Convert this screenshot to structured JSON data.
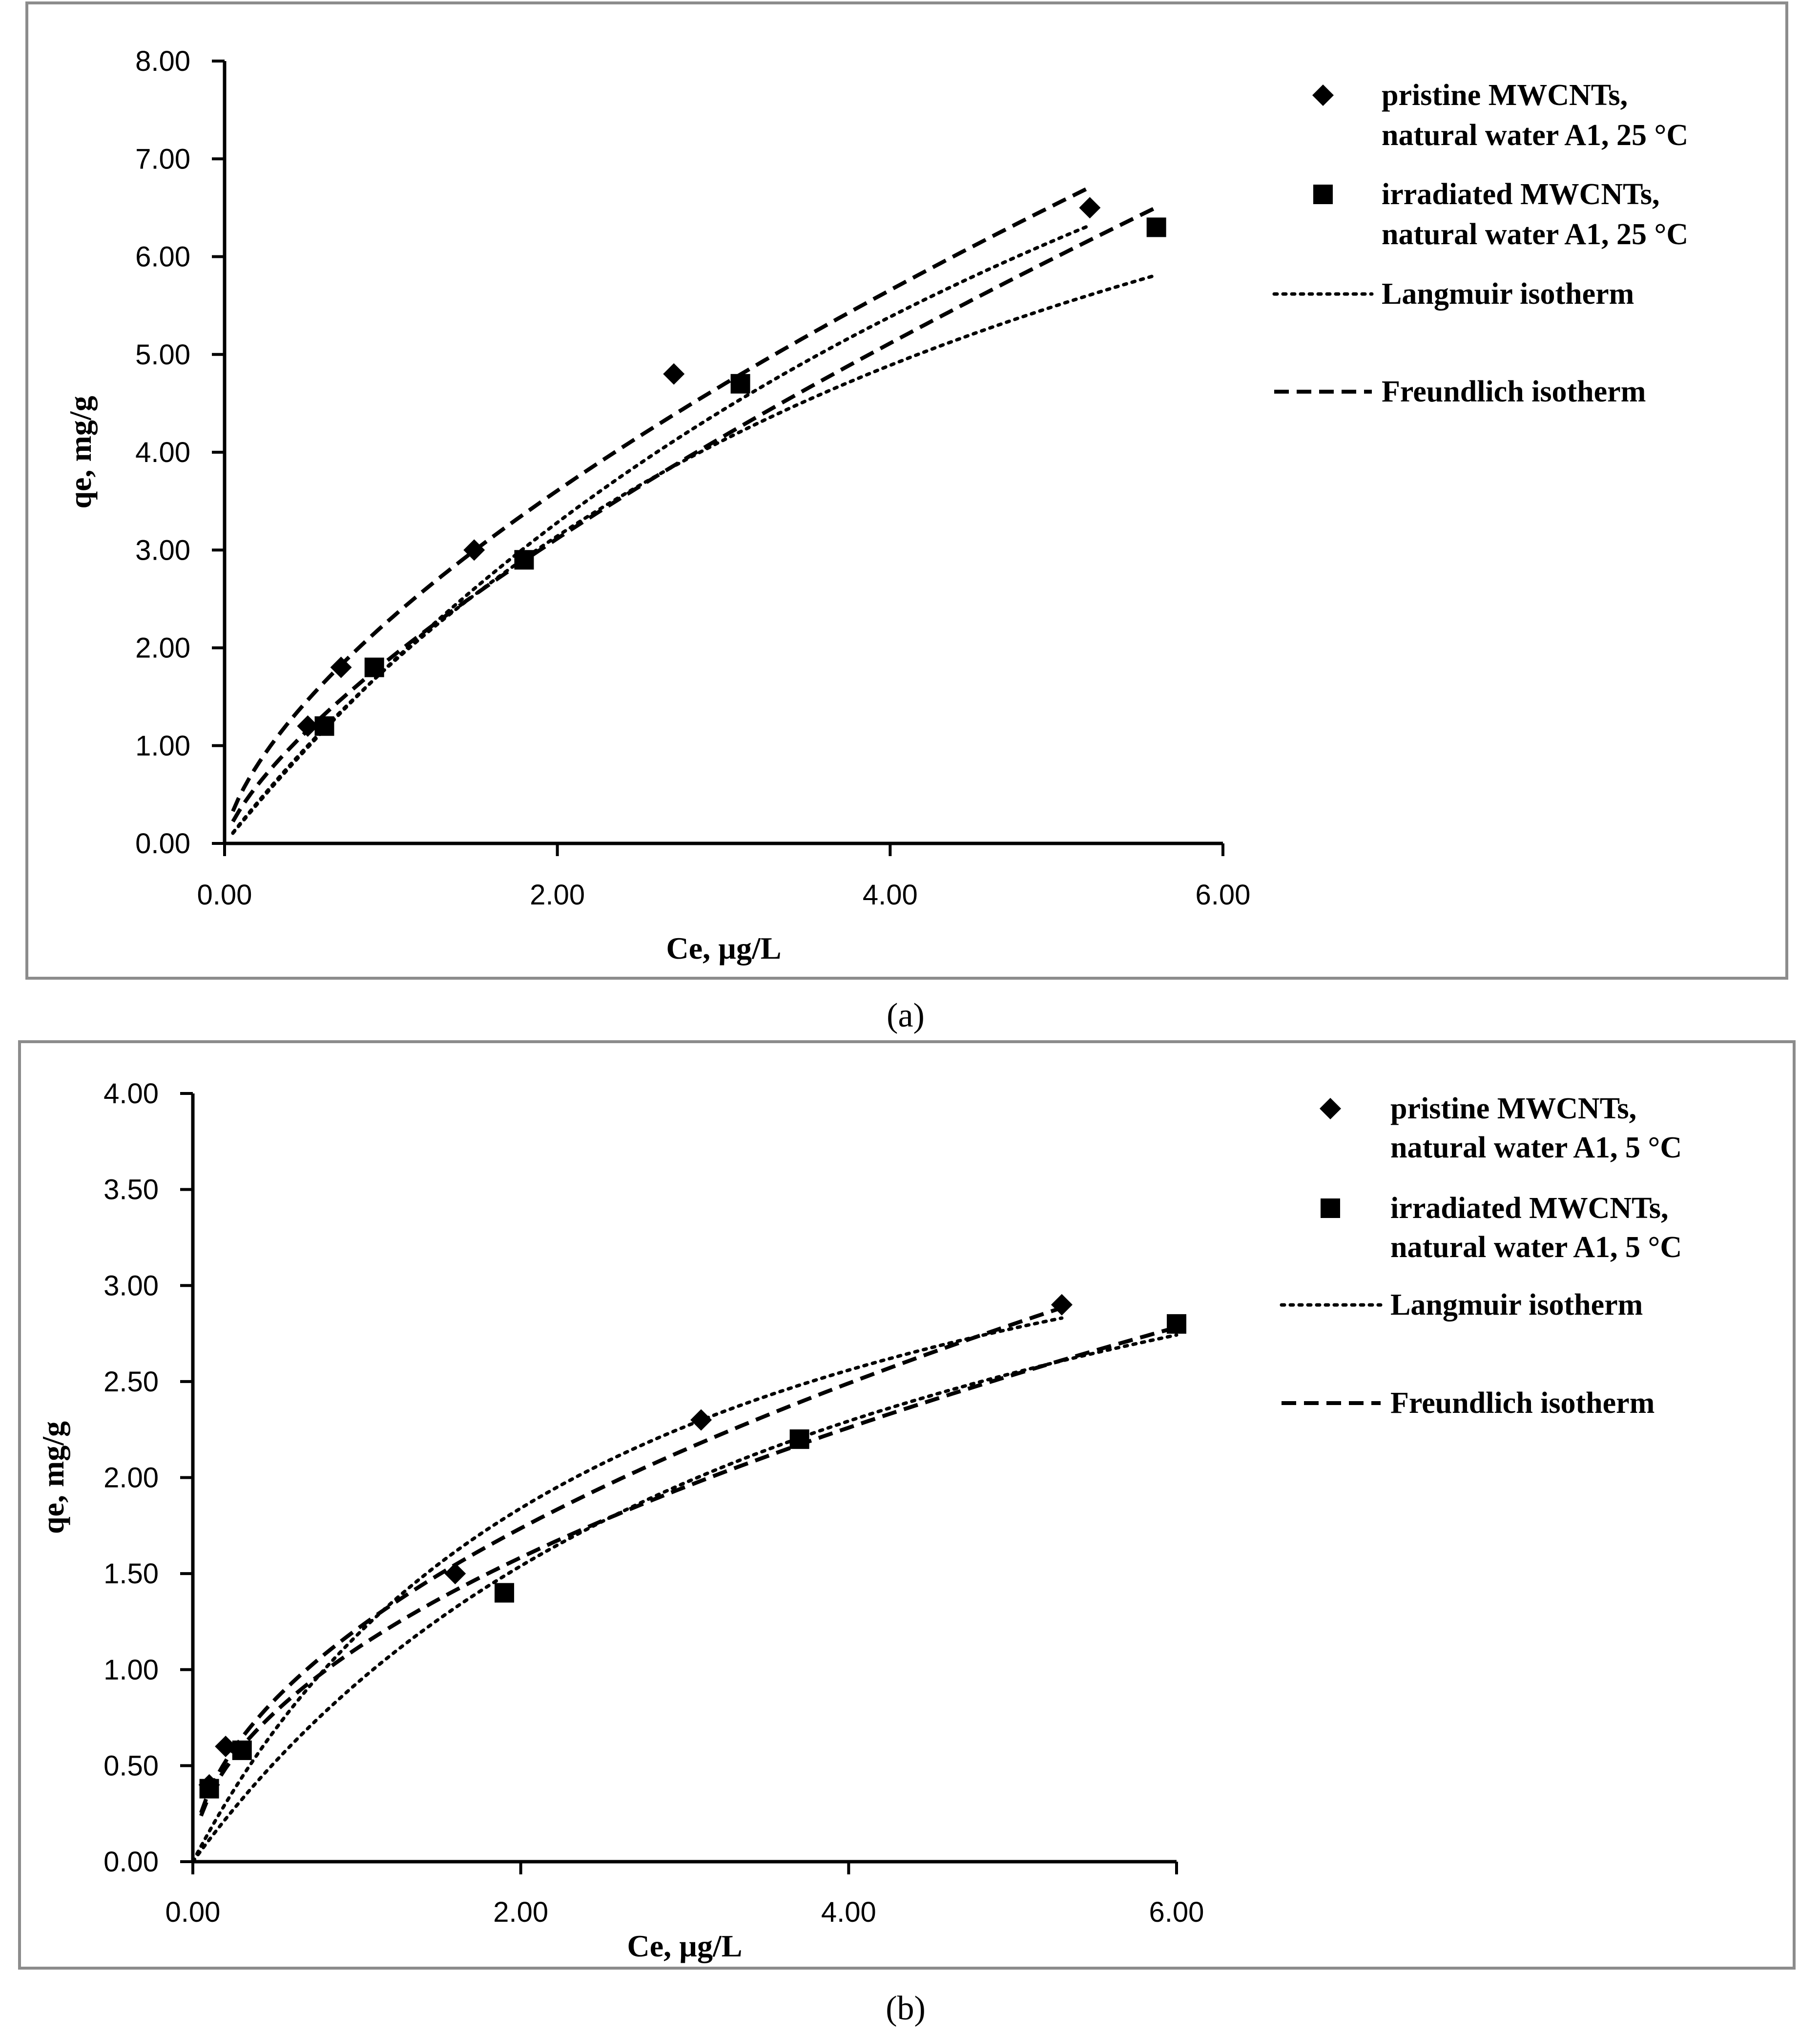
{
  "chart_data": [
    {
      "type": "scatter",
      "panel": "a",
      "caption": "(a)",
      "xlabel": "Ce, µg/L",
      "ylabel": "qe, mg/g",
      "xlim": [
        0,
        6
      ],
      "ylim": [
        0,
        8
      ],
      "x_ticks": [
        "0.00",
        "2.00",
        "4.00",
        "6.00"
      ],
      "y_ticks": [
        "0.00",
        "1.00",
        "2.00",
        "3.00",
        "4.00",
        "5.00",
        "6.00",
        "7.00",
        "8.00"
      ],
      "grid": false,
      "legend_position": "top-right",
      "legend": [
        {
          "marker": "diamond",
          "lines": [
            "pristine MWCNTs,",
            "natural water A1, 25 °C"
          ]
        },
        {
          "marker": "square",
          "lines": [
            "irradiated MWCNTs,",
            "natural water A1, 25 °C"
          ]
        },
        {
          "marker": "dotted-line",
          "lines": [
            "Langmuir isotherm"
          ]
        },
        {
          "marker": "dashed-line",
          "lines": [
            "Freundlich isotherm"
          ]
        }
      ],
      "series": [
        {
          "name": "pristine MWCNTs, natural water A1, 25 °C",
          "marker": "diamond",
          "x": [
            0.5,
            0.7,
            1.5,
            2.7,
            5.2
          ],
          "y": [
            1.2,
            1.8,
            3.0,
            4.8,
            6.5
          ]
        },
        {
          "name": "irradiated MWCNTs, natural water A1, 25 °C",
          "marker": "square",
          "x": [
            0.6,
            0.9,
            1.8,
            3.1,
            5.6
          ],
          "y": [
            1.2,
            1.8,
            2.9,
            4.7,
            6.3
          ]
        }
      ],
      "fits": [
        {
          "name": "Langmuir (pristine)",
          "style": "dotted",
          "model": "langmuir",
          "qmax": 15.0,
          "KL": 0.14,
          "x_range": [
            0.05,
            5.2
          ]
        },
        {
          "name": "Freundlich (pristine)",
          "style": "dashed",
          "model": "freundlich",
          "KF": 2.3,
          "n": 1.54,
          "x_range": [
            0.05,
            5.2
          ]
        },
        {
          "name": "Langmuir (irradiated)",
          "style": "dotted",
          "model": "langmuir",
          "qmax": 11.0,
          "KL": 0.2,
          "x_range": [
            0.05,
            5.6
          ]
        },
        {
          "name": "Freundlich (irradiated)",
          "style": "dashed",
          "model": "freundlich",
          "KF": 1.9,
          "n": 1.4,
          "x_range": [
            0.05,
            5.6
          ]
        }
      ]
    },
    {
      "type": "scatter",
      "panel": "b",
      "caption": "(b)",
      "xlabel": "Ce, µg/L",
      "ylabel": "qe, mg/g",
      "xlim": [
        0,
        6
      ],
      "ylim": [
        0,
        4
      ],
      "x_ticks": [
        "0.00",
        "2.00",
        "4.00",
        "6.00"
      ],
      "y_ticks": [
        "0.00",
        "0.50",
        "1.00",
        "1.50",
        "2.00",
        "2.50",
        "3.00",
        "3.50",
        "4.00"
      ],
      "grid": false,
      "legend_position": "top-right",
      "legend": [
        {
          "marker": "diamond",
          "lines": [
            "pristine MWCNTs,",
            "natural water A1, 5 °C"
          ]
        },
        {
          "marker": "square",
          "lines": [
            "irradiated MWCNTs,",
            "natural water A1, 5 °C"
          ]
        },
        {
          "marker": "dotted-line",
          "lines": [
            "Langmuir isotherm"
          ]
        },
        {
          "marker": "dashed-line",
          "lines": [
            "Freundlich isotherm"
          ]
        }
      ],
      "series": [
        {
          "name": "pristine MWCNTs, natural water A1, 5 °C",
          "marker": "diamond",
          "x": [
            0.1,
            0.2,
            1.6,
            3.1,
            5.3
          ],
          "y": [
            0.4,
            0.6,
            1.5,
            2.3,
            2.9
          ]
        },
        {
          "name": "irradiated MWCNTs, natural water A1, 5 °C",
          "marker": "square",
          "x": [
            0.1,
            0.3,
            1.9,
            3.7,
            6.0
          ],
          "y": [
            0.38,
            0.58,
            1.4,
            2.2,
            2.8
          ]
        }
      ],
      "fits": [
        {
          "name": "Langmuir (pristine)",
          "style": "dotted",
          "model": "langmuir",
          "qmax": 4.2,
          "KL": 0.39,
          "x_range": [
            0.0,
            5.3
          ]
        },
        {
          "name": "Freundlich (pristine)",
          "style": "dashed",
          "model": "freundlich",
          "KF": 1.21,
          "n": 1.92,
          "x_range": [
            0.05,
            5.3
          ]
        },
        {
          "name": "Langmuir (irradiated)",
          "style": "dotted",
          "model": "langmuir",
          "qmax": 4.5,
          "KL": 0.26,
          "x_range": [
            0.0,
            6.0
          ]
        },
        {
          "name": "Freundlich (irradiated)",
          "style": "dashed",
          "model": "freundlich",
          "KF": 1.11,
          "n": 1.95,
          "x_range": [
            0.05,
            6.0
          ]
        }
      ]
    }
  ]
}
